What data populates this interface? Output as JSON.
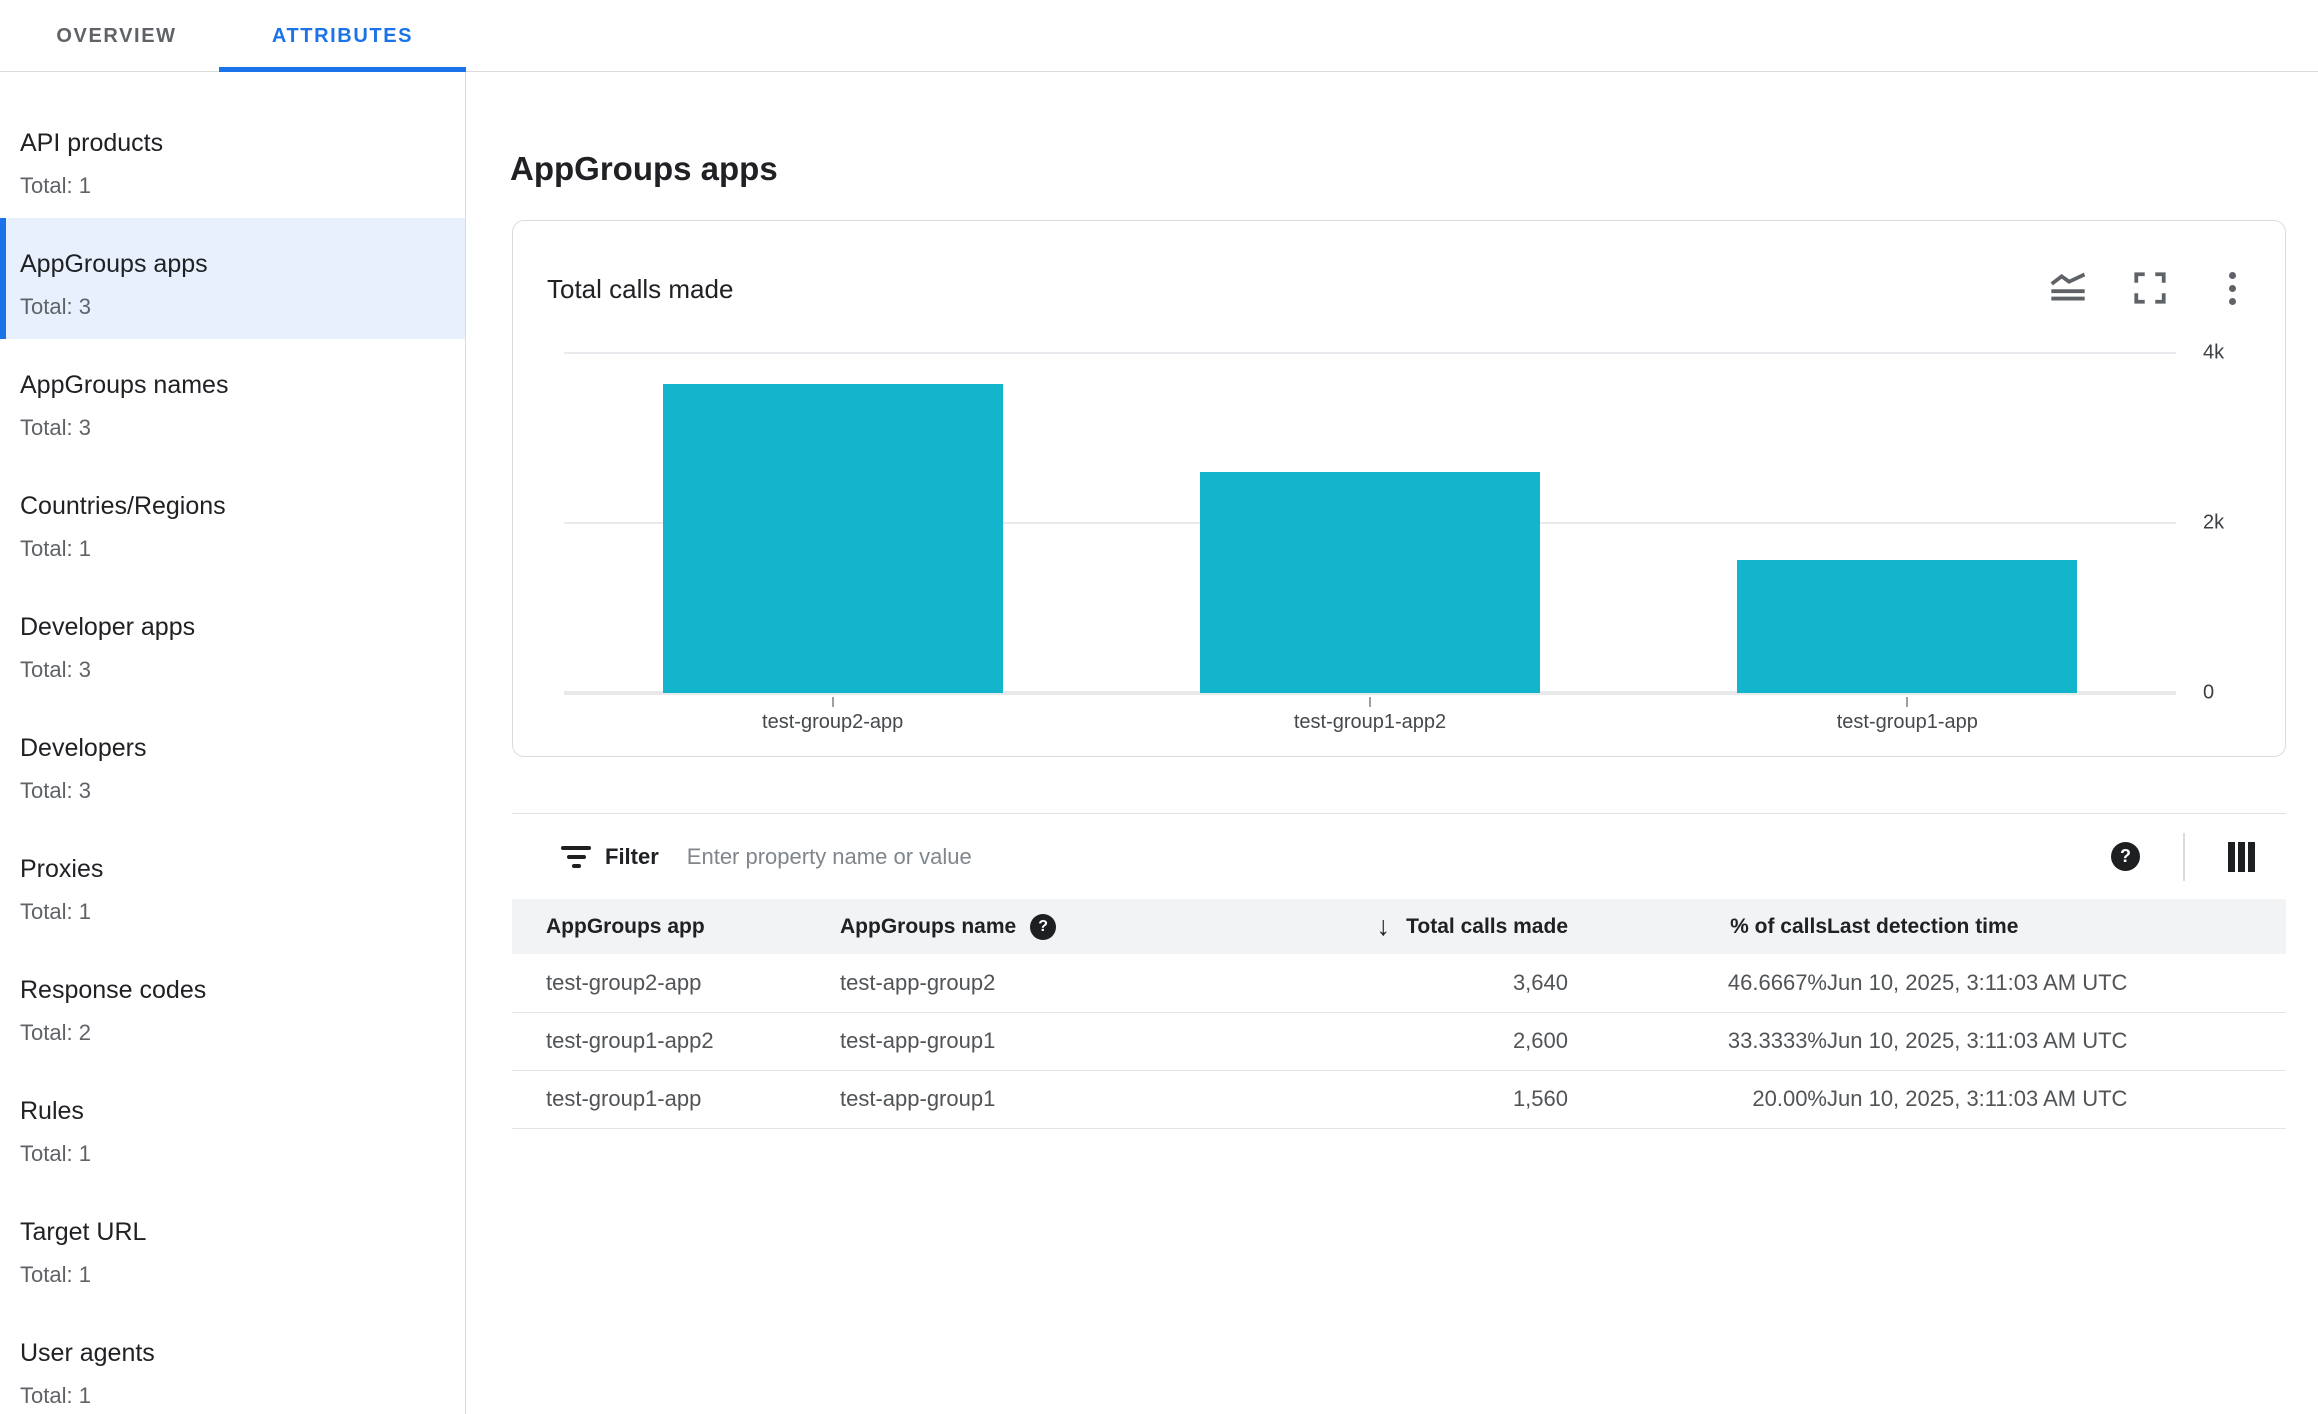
{
  "tabs": [
    {
      "label": "OVERVIEW",
      "active": false
    },
    {
      "label": "ATTRIBUTES",
      "active": true
    }
  ],
  "sidebar": {
    "items": [
      {
        "label": "API products",
        "total": "Total: 1"
      },
      {
        "label": "AppGroups apps",
        "total": "Total: 3"
      },
      {
        "label": "AppGroups names",
        "total": "Total: 3"
      },
      {
        "label": "Countries/Regions",
        "total": "Total: 1"
      },
      {
        "label": "Developer apps",
        "total": "Total: 3"
      },
      {
        "label": "Developers",
        "total": "Total: 3"
      },
      {
        "label": "Proxies",
        "total": "Total: 1"
      },
      {
        "label": "Response codes",
        "total": "Total: 2"
      },
      {
        "label": "Rules",
        "total": "Total: 1"
      },
      {
        "label": "Target URL",
        "total": "Total: 1"
      },
      {
        "label": "User agents",
        "total": "Total: 1"
      }
    ],
    "selected_index": 1
  },
  "main": {
    "heading": "AppGroups apps"
  },
  "chart_card": {
    "title": "Total calls made",
    "icons": [
      "area-chart-icon",
      "fullscreen-icon",
      "more-vert-icon"
    ]
  },
  "chart_data": {
    "type": "bar",
    "title": "Total calls made",
    "categories": [
      "test-group2-app",
      "test-group1-app2",
      "test-group1-app"
    ],
    "values": [
      3640,
      2600,
      1560
    ],
    "xlabel": "",
    "ylabel": "",
    "ylim": [
      0,
      4000
    ],
    "yticks": [
      {
        "value": 4000,
        "label": "4k"
      },
      {
        "value": 2000,
        "label": "2k"
      },
      {
        "value": 0,
        "label": "0"
      }
    ],
    "bar_color": "#12b5cb",
    "grid": true,
    "legend": false
  },
  "filter": {
    "label": "Filter",
    "placeholder": "Enter property name or value",
    "value": ""
  },
  "table": {
    "columns": [
      {
        "key": "app",
        "label": "AppGroups app",
        "align": "left"
      },
      {
        "key": "name",
        "label": "AppGroups name",
        "align": "left",
        "help_icon": true
      },
      {
        "key": "calls",
        "label": "Total calls made",
        "align": "right",
        "sorted": "desc"
      },
      {
        "key": "pct",
        "label": "% of calls",
        "align": "right"
      },
      {
        "key": "time",
        "label": "Last detection time",
        "align": "left"
      }
    ],
    "rows": [
      {
        "app": "test-group2-app",
        "name": "test-app-group2",
        "calls": "3,640",
        "pct": "46.6667%",
        "time": "Jun 10, 2025, 3:11:03 AM UTC"
      },
      {
        "app": "test-group1-app2",
        "name": "test-app-group1",
        "calls": "2,600",
        "pct": "33.3333%",
        "time": "Jun 10, 2025, 3:11:03 AM UTC"
      },
      {
        "app": "test-group1-app",
        "name": "test-app-group1",
        "calls": "1,560",
        "pct": "20.00%",
        "time": "Jun 10, 2025, 3:11:03 AM UTC"
      }
    ]
  },
  "colors": {
    "accent": "#1a73e8",
    "selected_bg": "#e8f0fe",
    "bar": "#12b5cb",
    "border": "#dadce0",
    "text_primary": "#202124",
    "text_secondary": "#5f6368",
    "placeholder": "#80868b",
    "table_header_bg": "#f1f3f4"
  }
}
